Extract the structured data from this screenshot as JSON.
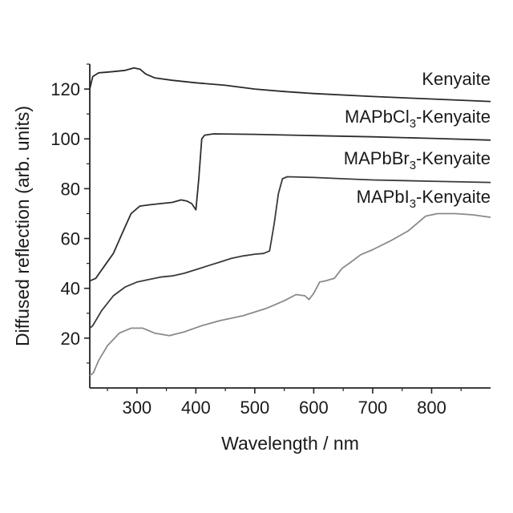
{
  "chart_data": {
    "type": "line",
    "xlabel": "Wavelength / nm",
    "ylabel": "Diffused reflection (arb. units)",
    "xlim": [
      220,
      900
    ],
    "ylim": [
      0,
      130
    ],
    "x_ticks": [
      "300",
      "400",
      "500",
      "600",
      "700",
      "800"
    ],
    "y_ticks": [
      "20",
      "40",
      "60",
      "80",
      "100",
      "120"
    ],
    "grid": false,
    "legend": "inline labels at top-right of each curve",
    "series": [
      {
        "name": "Kenyaite",
        "label_main": "Kenyaite",
        "label_sub": "",
        "label_tail": "",
        "color": "#2a2a2a",
        "points": [
          [
            220,
            120
          ],
          [
            225,
            125
          ],
          [
            235,
            126.5
          ],
          [
            260,
            127
          ],
          [
            280,
            127.5
          ],
          [
            295,
            128.5
          ],
          [
            305,
            128
          ],
          [
            315,
            126
          ],
          [
            330,
            124.5
          ],
          [
            360,
            123.5
          ],
          [
            400,
            122.5
          ],
          [
            450,
            121.5
          ],
          [
            500,
            120
          ],
          [
            550,
            119
          ],
          [
            600,
            118.2
          ],
          [
            700,
            117
          ],
          [
            800,
            116
          ],
          [
            900,
            115
          ]
        ]
      },
      {
        "name": "MAPbCl3-Kenyaite",
        "label_main": "MAPbCl",
        "label_sub": "3",
        "label_tail": "-Kenyaite",
        "color": "#2e2e2e",
        "points": [
          [
            220,
            43
          ],
          [
            230,
            44
          ],
          [
            245,
            49
          ],
          [
            260,
            54
          ],
          [
            275,
            62
          ],
          [
            290,
            70
          ],
          [
            305,
            73
          ],
          [
            320,
            73.5
          ],
          [
            340,
            74
          ],
          [
            360,
            74.5
          ],
          [
            375,
            75.5
          ],
          [
            385,
            75
          ],
          [
            393,
            74
          ],
          [
            400,
            71.5
          ],
          [
            405,
            84
          ],
          [
            410,
            100
          ],
          [
            415,
            101.5
          ],
          [
            430,
            102
          ],
          [
            500,
            101.8
          ],
          [
            600,
            101.3
          ],
          [
            700,
            100.8
          ],
          [
            800,
            100.2
          ],
          [
            900,
            99.5
          ]
        ]
      },
      {
        "name": "MAPbBr3-Kenyaite",
        "label_main": "MAPbBr",
        "label_sub": "3",
        "label_tail": "-Kenyaite",
        "color": "#3a3a3a",
        "points": [
          [
            220,
            24
          ],
          [
            225,
            25
          ],
          [
            240,
            31
          ],
          [
            260,
            37
          ],
          [
            280,
            40.5
          ],
          [
            300,
            42.5
          ],
          [
            320,
            43.5
          ],
          [
            340,
            44.5
          ],
          [
            360,
            45
          ],
          [
            380,
            46
          ],
          [
            400,
            47.5
          ],
          [
            420,
            49
          ],
          [
            440,
            50.5
          ],
          [
            460,
            52
          ],
          [
            480,
            53
          ],
          [
            500,
            53.7
          ],
          [
            515,
            54
          ],
          [
            525,
            55
          ],
          [
            533,
            66
          ],
          [
            540,
            78
          ],
          [
            547,
            84
          ],
          [
            555,
            84.8
          ],
          [
            600,
            84.5
          ],
          [
            650,
            84
          ],
          [
            700,
            83.5
          ],
          [
            800,
            83
          ],
          [
            900,
            82.5
          ]
        ]
      },
      {
        "name": "MAPbI3-Kenyaite",
        "label_main": "MAPbI",
        "label_sub": "3",
        "label_tail": "-Kenyaite",
        "color": "#8a8a8a",
        "points": [
          [
            220,
            5
          ],
          [
            226,
            6
          ],
          [
            235,
            11
          ],
          [
            250,
            17
          ],
          [
            270,
            22
          ],
          [
            290,
            24
          ],
          [
            310,
            24
          ],
          [
            330,
            22
          ],
          [
            355,
            21
          ],
          [
            380,
            22.5
          ],
          [
            410,
            25
          ],
          [
            440,
            27
          ],
          [
            480,
            29
          ],
          [
            520,
            32
          ],
          [
            550,
            35
          ],
          [
            570,
            37.5
          ],
          [
            585,
            37
          ],
          [
            592,
            35.5
          ],
          [
            600,
            38
          ],
          [
            610,
            42.5
          ],
          [
            620,
            43
          ],
          [
            635,
            44
          ],
          [
            648,
            48
          ],
          [
            660,
            50
          ],
          [
            680,
            53.5
          ],
          [
            700,
            55.5
          ],
          [
            730,
            59
          ],
          [
            760,
            63
          ],
          [
            775,
            66
          ],
          [
            790,
            69
          ],
          [
            810,
            70
          ],
          [
            840,
            70
          ],
          [
            870,
            69.5
          ],
          [
            900,
            68.5
          ]
        ]
      }
    ]
  }
}
